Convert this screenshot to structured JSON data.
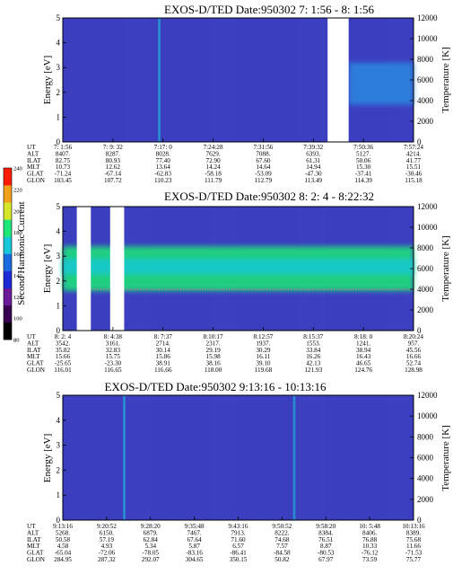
{
  "figure": {
    "colorbar": {
      "label": "Second Harmonic Current",
      "ticks": [
        "80",
        "100",
        "120",
        "140",
        "160",
        "180",
        "200",
        "220",
        "240"
      ],
      "colors": [
        "#000000",
        "#3a0050",
        "#6b1a99",
        "#1b2bd6",
        "#1a6be0",
        "#19c8d8",
        "#1ee878",
        "#d6e62a",
        "#f2a01c",
        "#ff1a00"
      ]
    }
  },
  "chart_data": [
    {
      "type": "heatmap",
      "title": "EXOS-D/TED   Date:950302  7: 1:56 - 8: 1:56",
      "ylabel": "Energy [eV]",
      "ylim": [
        0,
        5
      ],
      "yticks": [
        "0",
        "1",
        "2",
        "3",
        "4",
        "5"
      ],
      "y2label": "Temperature [K]",
      "y2lim": [
        0,
        12000
      ],
      "y2ticks": [
        "0",
        "2000",
        "4000",
        "6000",
        "8000",
        "10000",
        "12000"
      ],
      "background_color": "#3c3ec0",
      "row_labels": [
        "UT",
        "ALT",
        "ILAT",
        "MLT",
        "GLAT",
        "GLON"
      ],
      "columns": [
        [
          "7: 1:56",
          "8407.",
          "82.75",
          "10.73",
          "-71.24",
          "103.45"
        ],
        [
          "7: 9: 32",
          "8287.",
          "80.93",
          "12.62",
          "-67.14",
          "107.72"
        ],
        [
          "7:17: 0",
          "8028.",
          "77.40",
          "13.64",
          "-62.83",
          "110.23"
        ],
        [
          "7:24:28",
          "7629.",
          "72.90",
          "14.24",
          "-58.18",
          "111.79"
        ],
        [
          "7:31:56",
          "7088.",
          "67.60",
          "14.64",
          "-53.09",
          "112.79"
        ],
        [
          "7:39:32",
          "6393.",
          "61.31",
          "14.94",
          "-47.30",
          "113.49"
        ],
        [
          "7:50:36",
          "5127.",
          "50.06",
          "15.30",
          "-37.41",
          "114.39"
        ],
        [
          "7:57:24",
          "4214.",
          "41.77",
          "15.51",
          "-30.46",
          "115.18"
        ]
      ],
      "data_gaps": [
        [
          0.755,
          0.815
        ]
      ],
      "features": [
        {
          "kind": "spike",
          "x": 0.275,
          "level": "cyan"
        },
        {
          "kind": "band",
          "x": [
            0.815,
            1.0
          ],
          "y": [
            1.5,
            3.2
          ],
          "level": "blue"
        }
      ]
    },
    {
      "type": "heatmap",
      "title": "EXOS-D/TED   Date:950302  8: 2: 4 - 8:22:32",
      "ylabel": "Energy [eV]",
      "ylim": [
        0,
        5
      ],
      "yticks": [
        "0",
        "1",
        "2",
        "3",
        "4",
        "5"
      ],
      "y2label": "Temperature [K]",
      "y2lim": [
        0,
        12000
      ],
      "y2ticks": [
        "0",
        "2000",
        "4000",
        "6000",
        "8000",
        "10000",
        "12000"
      ],
      "background_color": "#3c3ec0",
      "row_labels": [
        "UT",
        "ALT",
        "ILAT",
        "MLT",
        "GLAT",
        "GLON"
      ],
      "columns": [
        [
          "8: 2: 4",
          "3542.",
          "35.82",
          "15.66",
          "-25.65",
          "116.01"
        ],
        [
          "8: 4:38",
          "3161.",
          "32.83",
          "15.75",
          "-23.30",
          "116.65"
        ],
        [
          "8: 7:37",
          "2714.",
          "30.14",
          "15.86",
          "38.91",
          "116.66"
        ],
        [
          "8:10:17",
          "2317.",
          "29.19",
          "15.98",
          "38.16",
          "118.00"
        ],
        [
          "8:12:57",
          "1937.",
          "30.29",
          "16.11",
          "39.10",
          "119.68"
        ],
        [
          "8:15:37",
          "1553.",
          "33.84",
          "16.26",
          "42.13",
          "121.93"
        ],
        [
          "8:18: 0",
          "1241.",
          "38.94",
          "16.43",
          "46.65",
          "124.76"
        ],
        [
          "8:20:24",
          "957.",
          "45.56",
          "16.66",
          "52.74",
          "128.98"
        ]
      ],
      "data_gaps": [
        [
          0.04,
          0.08
        ],
        [
          0.135,
          0.175
        ]
      ],
      "features": [
        {
          "kind": "band",
          "x": [
            0.0,
            1.0
          ],
          "y": [
            1.6,
            3.4
          ],
          "level": "green"
        },
        {
          "kind": "temperature-line",
          "y": 4000
        }
      ]
    },
    {
      "type": "heatmap",
      "title": "EXOS-D/TED   Date:950302  9:13:16 - 10:13:16",
      "ylabel": "Energy [eV]",
      "ylim": [
        0,
        5
      ],
      "yticks": [
        "0",
        "1",
        "2",
        "3",
        "4",
        "5"
      ],
      "y2label": "Temperature [K]",
      "y2lim": [
        0,
        12000
      ],
      "y2ticks": [
        "0",
        "2000",
        "4000",
        "6000",
        "8000",
        "10000",
        "12000"
      ],
      "background_color": "#3c3ec0",
      "row_labels": [
        "UT",
        "ALT",
        "ILAT",
        "MLT",
        "GLAT",
        "GLON"
      ],
      "columns": [
        [
          "9:13:16",
          "5268.",
          "50.58",
          "4.58",
          "-65.04",
          "284.95"
        ],
        [
          "9:20:52",
          "6150.",
          "57.19",
          "4.93",
          "-72.06",
          "287.32"
        ],
        [
          "9:28:20",
          "6879.",
          "62.84",
          "5.34",
          "-78.05",
          "292.07"
        ],
        [
          "9:35:48",
          "7467.",
          "67.64",
          "5.87",
          "-83.16",
          "304.65"
        ],
        [
          "9:43:16",
          "7913.",
          "71.60",
          "6.57",
          "-86.41",
          "350.15"
        ],
        [
          "9:50:52",
          "8222.",
          "74.68",
          "7.57",
          "-84.58",
          "50.82"
        ],
        [
          "9:58:20",
          "8384.",
          "76.51",
          "8.87",
          "-80.53",
          "67.97"
        ],
        [
          "10: 5:48",
          "8406.",
          "76.88",
          "10.33",
          "-76.12",
          "73.59"
        ],
        [
          "10:13:16",
          "8389.",
          "75.68",
          "11.66",
          "-71.53",
          "75.77"
        ]
      ],
      "data_gaps": [],
      "features": [
        {
          "kind": "spike",
          "x": 0.175,
          "level": "cyan"
        },
        {
          "kind": "spike",
          "x": 0.66,
          "level": "cyan"
        }
      ]
    }
  ]
}
